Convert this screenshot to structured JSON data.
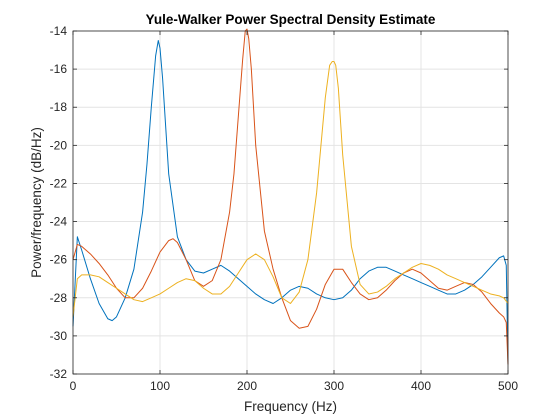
{
  "chart_data": {
    "type": "line",
    "title": "Yule-Walker Power Spectral Density Estimate",
    "xlabel": "Frequency (Hz)",
    "ylabel": "Power/frequency (dB/Hz)",
    "xlim": [
      0,
      500
    ],
    "ylim": [
      -32,
      -14
    ],
    "xticks": [
      0,
      100,
      200,
      300,
      400,
      500
    ],
    "yticks": [
      -32,
      -30,
      -28,
      -26,
      -24,
      -22,
      -20,
      -18,
      -16,
      -14
    ],
    "grid": true,
    "colors": [
      "#0072BD",
      "#D95319",
      "#EDB120"
    ],
    "series": [
      {
        "x": [
          0,
          5,
          10,
          20,
          30,
          40,
          45,
          50,
          60,
          70,
          80,
          85,
          90,
          95,
          98,
          100,
          103,
          110,
          120,
          130,
          140,
          150,
          160,
          170,
          180,
          190,
          200,
          210,
          220,
          230,
          240,
          250,
          260,
          270,
          280,
          290,
          300,
          310,
          320,
          330,
          340,
          350,
          360,
          370,
          380,
          390,
          400,
          410,
          420,
          430,
          440,
          450,
          460,
          470,
          480,
          490,
          495,
          498,
          500
        ],
        "y": [
          -29.5,
          -24.8,
          -25.5,
          -27.0,
          -28.3,
          -29.1,
          -29.2,
          -29.0,
          -28.0,
          -26.5,
          -23.5,
          -21.0,
          -18.0,
          -15.3,
          -14.5,
          -14.9,
          -16.5,
          -21.5,
          -24.8,
          -26.0,
          -26.6,
          -26.7,
          -26.5,
          -26.3,
          -26.6,
          -27.0,
          -27.4,
          -27.8,
          -28.1,
          -28.3,
          -28.0,
          -27.6,
          -27.4,
          -27.5,
          -27.8,
          -28.0,
          -28.1,
          -28.0,
          -27.6,
          -27.0,
          -26.6,
          -26.4,
          -26.4,
          -26.6,
          -26.8,
          -27.0,
          -27.2,
          -27.4,
          -27.6,
          -27.8,
          -27.8,
          -27.6,
          -27.3,
          -26.9,
          -26.4,
          -25.9,
          -25.8,
          -26.3,
          -31.5
        ]
      },
      {
        "x": [
          0,
          5,
          10,
          20,
          30,
          40,
          50,
          60,
          70,
          80,
          90,
          100,
          110,
          115,
          120,
          130,
          140,
          150,
          160,
          170,
          180,
          185,
          190,
          195,
          198,
          200,
          202,
          205,
          210,
          220,
          230,
          240,
          250,
          260,
          270,
          280,
          290,
          300,
          310,
          320,
          330,
          340,
          350,
          360,
          370,
          380,
          390,
          400,
          410,
          420,
          430,
          440,
          450,
          460,
          470,
          480,
          490,
          495,
          498,
          500
        ],
        "y": [
          -26.0,
          -25.2,
          -25.3,
          -25.7,
          -26.2,
          -26.8,
          -27.5,
          -28.0,
          -28.0,
          -27.5,
          -26.6,
          -25.6,
          -25.0,
          -24.9,
          -25.1,
          -26.0,
          -27.1,
          -27.4,
          -27.1,
          -26.0,
          -23.5,
          -21.5,
          -18.5,
          -15.5,
          -14.0,
          -13.9,
          -14.4,
          -16.0,
          -20.0,
          -24.5,
          -26.5,
          -28.0,
          -29.2,
          -29.6,
          -29.5,
          -28.6,
          -27.3,
          -26.5,
          -26.5,
          -27.2,
          -27.8,
          -28.1,
          -28.0,
          -27.6,
          -27.1,
          -26.7,
          -26.5,
          -26.7,
          -27.1,
          -27.5,
          -27.6,
          -27.4,
          -27.2,
          -27.3,
          -27.7,
          -28.3,
          -28.8,
          -29.0,
          -29.3,
          -31.5
        ]
      },
      {
        "x": [
          0,
          5,
          10,
          20,
          30,
          40,
          50,
          60,
          70,
          80,
          90,
          100,
          110,
          120,
          130,
          140,
          150,
          160,
          170,
          180,
          190,
          200,
          210,
          220,
          230,
          240,
          250,
          260,
          270,
          280,
          285,
          290,
          295,
          298,
          300,
          302,
          305,
          310,
          320,
          330,
          340,
          350,
          360,
          370,
          380,
          390,
          400,
          410,
          420,
          430,
          440,
          450,
          460,
          470,
          480,
          490,
          495,
          500
        ],
        "y": [
          -29.0,
          -27.0,
          -26.8,
          -26.8,
          -26.9,
          -27.2,
          -27.5,
          -27.8,
          -28.1,
          -28.2,
          -28.0,
          -27.8,
          -27.5,
          -27.2,
          -27.0,
          -27.1,
          -27.5,
          -27.8,
          -27.8,
          -27.4,
          -26.7,
          -26.0,
          -25.7,
          -26.0,
          -26.9,
          -28.0,
          -28.3,
          -27.7,
          -26.0,
          -22.5,
          -20.0,
          -17.5,
          -15.8,
          -15.6,
          -15.6,
          -15.8,
          -17.0,
          -20.5,
          -25.3,
          -27.3,
          -27.8,
          -27.7,
          -27.4,
          -27.0,
          -26.7,
          -26.4,
          -26.2,
          -26.3,
          -26.5,
          -26.8,
          -27.0,
          -27.2,
          -27.4,
          -27.6,
          -27.8,
          -27.9,
          -28.0,
          -28.3
        ]
      }
    ]
  }
}
